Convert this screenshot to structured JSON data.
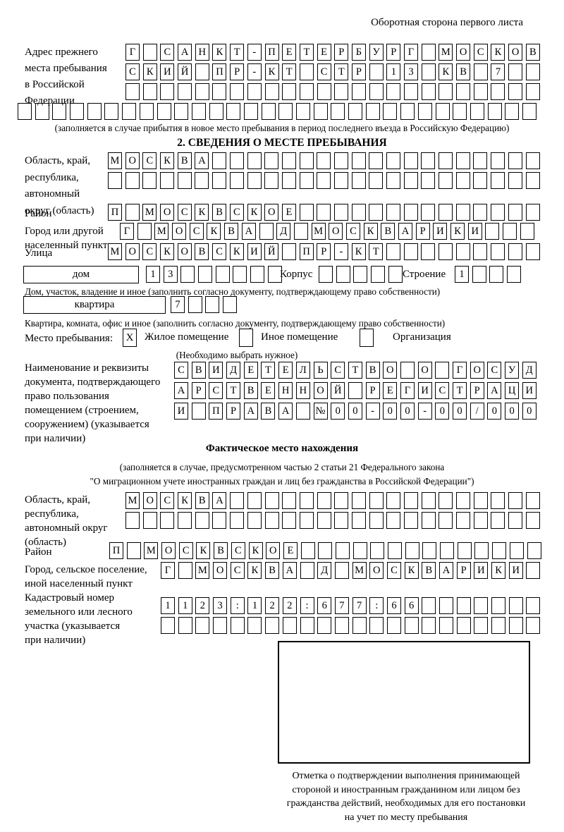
{
  "page": {
    "side_note": "Оборотная сторона первого листа"
  },
  "prev_address": {
    "label": "Адрес прежнего\nместа пребывания\nв Российской\nФедерации",
    "rows": [
      {
        "text": "Г САНКТ-ПЕТЕРБУРГ МОСКОВ",
        "count": 24
      },
      {
        "text": "СКИЙ ПР-КТ СТР 13 КВ 7",
        "count": 24
      },
      {
        "text": "",
        "count": 24
      },
      {
        "text": "",
        "count": 30
      }
    ],
    "note": "(заполняется в случае прибытия в новое место пребывания в период последнего въезда в Российскую Федерацию)"
  },
  "stay_info": {
    "title": "2. СВЕДЕНИЯ О МЕСТЕ ПРЕБЫВАНИЯ",
    "region": {
      "label": "Область, край,\nреспублика,\nавтономный\nокруг (область)",
      "rows": [
        {
          "text": "МОСКВА",
          "count": 25
        },
        {
          "text": "",
          "count": 25
        }
      ]
    },
    "district": {
      "label": "Район",
      "row": {
        "text": "П МОСКВСКОЕ",
        "count": 25
      }
    },
    "city": {
      "label": "Город или другой\nнаселенный пункт",
      "row": {
        "text": "Г МОСКВА Д МОСКВАРИКИ",
        "count": 24
      }
    },
    "street": {
      "label": "Улица",
      "row": {
        "text": "МОСКОВСКИЙ ПР-КТ",
        "count": 25
      }
    },
    "house": {
      "box_label": "дом",
      "cells": {
        "text": "13",
        "count": 8
      },
      "korpus_label": "Корпус",
      "korpus_cells": {
        "text": "",
        "count": 5
      },
      "stroenie_label": "Строение",
      "stroenie_cells": {
        "text": "1",
        "count": 4
      }
    },
    "house_note": "Дом, участок, владение и иное (заполнить согласно документу, подтверждающему право собственности)",
    "apartment": {
      "box_label": "квартира",
      "cells": {
        "text": "7",
        "count": 4
      }
    },
    "apartment_note": "Квартира, комната, офис и иное (заполнить согласно документу, подтверждающему право собственности)",
    "residence_type": {
      "label": "Место пребывания:",
      "options": [
        {
          "label": "Жилое помещение",
          "mark": "X"
        },
        {
          "label": "Иное помещение",
          "mark": ""
        },
        {
          "label": "Организация",
          "mark": ""
        }
      ],
      "note": "(Необходимо выбрать нужное)"
    },
    "document": {
      "label": "Наименование и реквизиты\nдокумента, подтверждающего\nправо пользования\nпомещением (строением,\nсооружением) (указывается\nпри наличии)",
      "rows": [
        {
          "text": "СВИДЕТЕЛЬСТВО О ГОСУД",
          "count": 21
        },
        {
          "text": "АРСТВЕННОЙ РЕГИСТРАЦИ",
          "count": 21
        },
        {
          "text": "И ПРАВА №00-00-00/000",
          "count": 21
        }
      ]
    }
  },
  "actual_location": {
    "title": "Фактическое место нахождения",
    "note": "(заполняется в случае, предусмотренном частью 2 статьи 21 Федерального закона\n\"О миграционном учете иностранных граждан и лиц без гражданства в Российской Федерации\")",
    "region": {
      "label": "Область, край,\nреспублика,\nавтономный округ\n(область)",
      "rows": [
        {
          "text": "МОСКВА",
          "count": 24
        },
        {
          "text": "",
          "count": 24
        }
      ]
    },
    "district": {
      "label": "Район",
      "row": {
        "text": "П МОСКВСКОЕ",
        "count": 25
      }
    },
    "city": {
      "label": "Город, сельское поселение,\nиной населенный пункт",
      "row": {
        "text": "Г МОСКВА Д МОСКВАРИКИ",
        "count": 22
      }
    },
    "cadastral": {
      "label": "Кадастровый номер\nземельного или лесного\nучастка (указывается\nпри наличии)",
      "rows": [
        {
          "text": "1123:122:677:66",
          "count": 22
        },
        {
          "text": "",
          "count": 22
        }
      ]
    },
    "stamp_caption": "Отметка о подтверждении выполнения принимающей\nстороной и иностранным гражданином или лицом без\nгражданства действий, необходимых для его постановки\nна учет по месту пребывания"
  }
}
